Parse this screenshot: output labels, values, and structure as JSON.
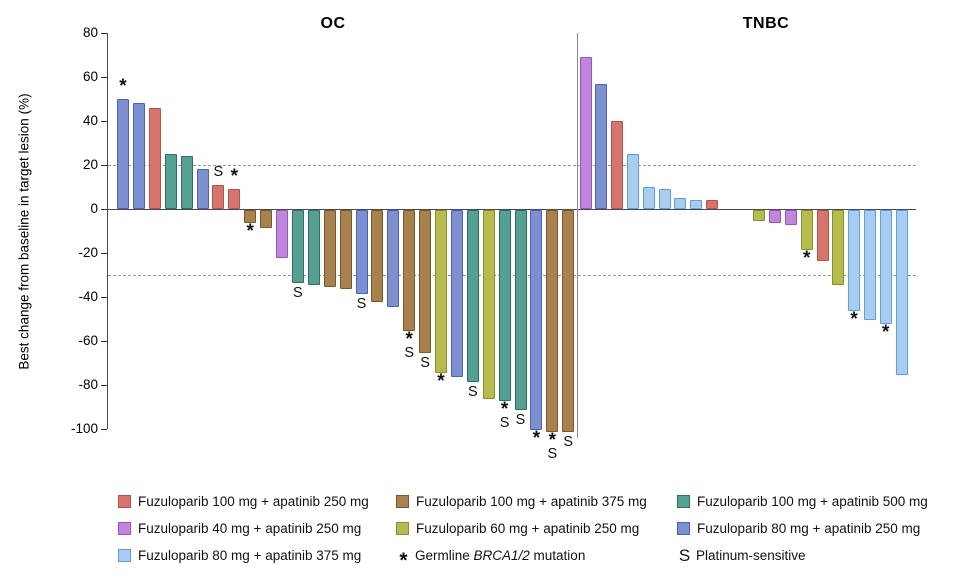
{
  "chart_data": {
    "type": "bar",
    "subtype": "waterfall",
    "ylabel": "Best change from baseline in target lesion (%)",
    "ylim": [
      -100,
      80
    ],
    "yticks": [
      80,
      60,
      40,
      20,
      0,
      -20,
      -40,
      -60,
      -80,
      -100
    ],
    "reference_lines": [
      20,
      -30
    ],
    "grid": "dashed-reference-only",
    "legend_position": "bottom",
    "dose_groups": {
      "f100a250": {
        "label": "Fuzuloparib 100 mg + apatinib 250 mg",
        "fill": "#D8746E",
        "stroke": "#B4524C"
      },
      "f100a375": {
        "label": "Fuzuloparib 100 mg + apatinib 375 mg",
        "fill": "#A8814F",
        "stroke": "#7A592E"
      },
      "f100a500": {
        "label": "Fuzuloparib 100 mg + apatinib 500 mg",
        "fill": "#56A093",
        "stroke": "#2E6F62"
      },
      "f40a250": {
        "label": "Fuzuloparib 40 mg + apatinib 250 mg",
        "fill": "#C086DC",
        "stroke": "#9B52C5"
      },
      "f60a250": {
        "label": "Fuzuloparib 60 mg + apatinib 250 mg",
        "fill": "#B5BB4F",
        "stroke": "#8A9029"
      },
      "f80a250": {
        "label": "Fuzuloparib 80 mg + apatinib 250 mg",
        "fill": "#7C90D0",
        "stroke": "#4D5FC2"
      },
      "f80a375": {
        "label": "Fuzuloparib 80 mg + apatinib 375 mg",
        "fill": "#A9CDF0",
        "stroke": "#5B9FDE"
      }
    },
    "marker_meanings": {
      "star": "Germline BRCA1/2 mutation",
      "s": "Platinum-sensitive"
    },
    "panels": [
      {
        "title": "OC",
        "bars": [
          {
            "group": "f80a250",
            "value": 50,
            "marks": [
              "star"
            ]
          },
          {
            "group": "f80a250",
            "value": 48
          },
          {
            "group": "f100a250",
            "value": 46
          },
          {
            "group": "f100a500",
            "value": 25
          },
          {
            "group": "f100a500",
            "value": 24
          },
          {
            "group": "f80a250",
            "value": 18
          },
          {
            "group": "f100a250",
            "value": 11,
            "marks": [
              "s"
            ]
          },
          {
            "group": "f100a250",
            "value": 9,
            "marks": [
              "star"
            ]
          },
          {
            "group": "f100a375",
            "value": -6,
            "marks": [
              "star"
            ]
          },
          {
            "group": "f100a375",
            "value": -8
          },
          {
            "group": "f40a250",
            "value": -22
          },
          {
            "group": "f100a500",
            "value": -33,
            "marks": [
              "s"
            ]
          },
          {
            "group": "f100a500",
            "value": -34
          },
          {
            "group": "f100a375",
            "value": -35
          },
          {
            "group": "f100a375",
            "value": -36
          },
          {
            "group": "f80a250",
            "value": -38,
            "marks": [
              "s"
            ]
          },
          {
            "group": "f100a375",
            "value": -42
          },
          {
            "group": "f80a250",
            "value": -44
          },
          {
            "group": "f100a375",
            "value": -55,
            "marks": [
              "star",
              "s"
            ]
          },
          {
            "group": "f100a375",
            "value": -65,
            "marks": [
              "s"
            ]
          },
          {
            "group": "f60a250",
            "value": -74,
            "marks": [
              "star"
            ]
          },
          {
            "group": "f80a250",
            "value": -76
          },
          {
            "group": "f100a500",
            "value": -78,
            "marks": [
              "s"
            ]
          },
          {
            "group": "f60a250",
            "value": -86
          },
          {
            "group": "f100a500",
            "value": -87,
            "marks": [
              "star",
              "s"
            ]
          },
          {
            "group": "f100a500",
            "value": -91,
            "marks": [
              "s"
            ]
          },
          {
            "group": "f80a250",
            "value": -100,
            "marks": [
              "star"
            ]
          },
          {
            "group": "f100a375",
            "value": -101,
            "marks": [
              "star",
              "s"
            ]
          },
          {
            "group": "f100a375",
            "value": -101,
            "marks": [
              "s"
            ]
          }
        ]
      },
      {
        "title": "TNBC",
        "bars": [
          {
            "group": "f40a250",
            "value": 69
          },
          {
            "group": "f80a250",
            "value": 57
          },
          {
            "group": "f100a250",
            "value": 40
          },
          {
            "group": "f80a375",
            "value": 25
          },
          {
            "group": "f80a375",
            "value": 10
          },
          {
            "group": "f80a375",
            "value": 9
          },
          {
            "group": "f80a375",
            "value": 5
          },
          {
            "group": "f80a375",
            "value": 4
          },
          {
            "group": "f100a250",
            "value": 4
          },
          {
            "spacer": true
          },
          {
            "spacer": true
          },
          {
            "group": "f60a250",
            "value": -5
          },
          {
            "group": "f40a250",
            "value": -6
          },
          {
            "group": "f40a250",
            "value": -7
          },
          {
            "group": "f60a250",
            "value": -18,
            "marks": [
              "star"
            ]
          },
          {
            "group": "f100a250",
            "value": -23
          },
          {
            "group": "f60a250",
            "value": -34
          },
          {
            "group": "f80a375",
            "value": -46,
            "marks": [
              "star"
            ]
          },
          {
            "group": "f80a375",
            "value": -50
          },
          {
            "group": "f80a375",
            "value": -52,
            "marks": [
              "star"
            ]
          },
          {
            "group": "f80a375",
            "value": -75
          }
        ]
      }
    ],
    "legend_columns": [
      [
        {
          "swatch": "f100a250"
        },
        {
          "swatch": "f40a250"
        },
        {
          "swatch": "f80a375"
        }
      ],
      [
        {
          "swatch": "f100a375"
        },
        {
          "swatch": "f60a250"
        },
        {
          "symbol": "star",
          "label_prefix": "Germline ",
          "label_italic": "BRCA1/2",
          "label_suffix": " mutation"
        }
      ],
      [
        {
          "swatch": "f100a500"
        },
        {
          "swatch": "f80a250"
        },
        {
          "symbol": "S",
          "label": "Platinum-sensitive"
        }
      ]
    ]
  }
}
